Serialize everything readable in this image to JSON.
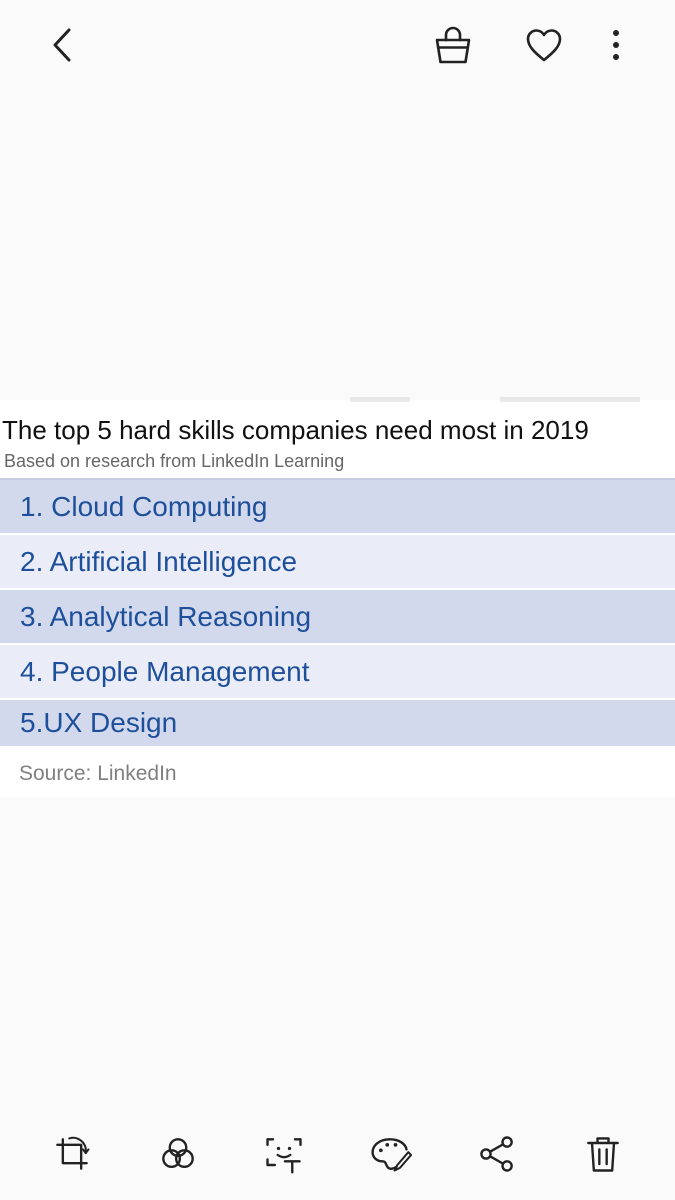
{
  "top_bar": {
    "icons": {
      "back": "back-arrow-icon",
      "bag": "shopping-bag-icon",
      "favorite": "heart-icon",
      "more": "more-vertical-icon"
    }
  },
  "image": {
    "title": "The top 5 hard skills companies need most in 2019",
    "subtitle": "Based on research from LinkedIn Learning",
    "skills": [
      "1. Cloud Computing",
      "2. Artificial Intelligence",
      "3. Analytical Reasoning",
      "4. People Management",
      "5.UX Design"
    ],
    "source": "Source: LinkedIn",
    "colors": {
      "row_dark": "#d3d9ec",
      "row_light": "#eaedf7",
      "skill_text": "#1d4f9a"
    }
  },
  "bottom_bar": {
    "tools": [
      "crop-rotate-icon",
      "filters-icon",
      "text-recognition-icon",
      "draw-palette-icon",
      "share-icon",
      "delete-icon"
    ]
  },
  "colors": {
    "background": "#fafafa",
    "icon": "#222222"
  }
}
